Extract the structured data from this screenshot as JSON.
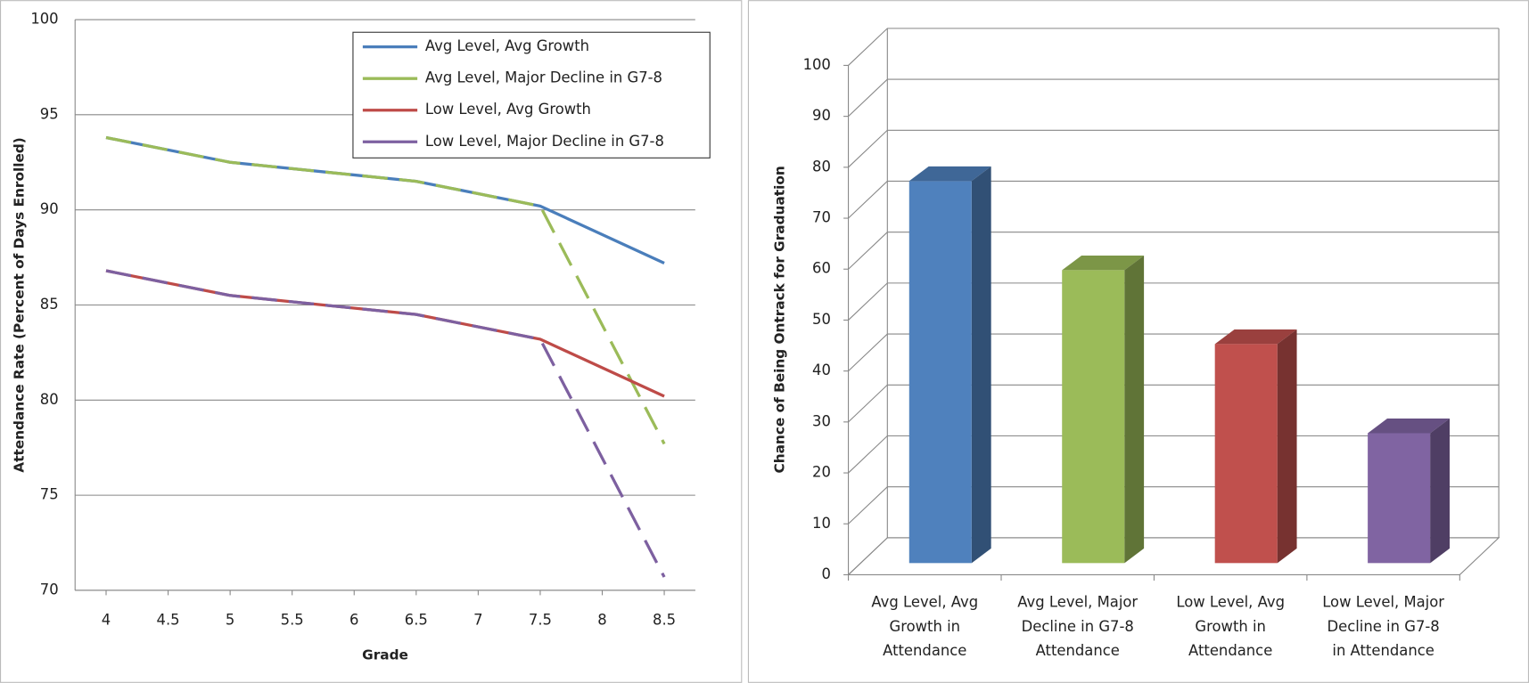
{
  "chart_data": [
    {
      "type": "line",
      "x_label": "Grade",
      "y_label": "Attendance Rate (Percent of Days Enrolled)",
      "x": [
        4,
        5,
        6.5,
        7.5,
        8.5
      ],
      "series": [
        {
          "name": "Avg Level, Avg Growth",
          "color": "#4a7ebb",
          "dashed": false,
          "values": [
            93.8,
            92.5,
            91.5,
            90.2,
            87.2
          ]
        },
        {
          "name": "Avg Level, Major Decline in G7-8",
          "color": "#9bbb59",
          "dashed": true,
          "values": [
            93.8,
            92.5,
            91.5,
            90.2,
            77.7
          ]
        },
        {
          "name": "Low Level, Avg Growth",
          "color": "#be4b48",
          "dashed": false,
          "values": [
            86.8,
            85.5,
            84.5,
            83.2,
            80.2
          ]
        },
        {
          "name": "Low Level, Major Decline in G7-8",
          "color": "#7d60a0",
          "dashed": true,
          "values": [
            86.8,
            85.5,
            84.5,
            83.2,
            70.7
          ]
        }
      ],
      "xlim": [
        3.75,
        8.75
      ],
      "xticks": [
        4,
        4.5,
        5,
        5.5,
        6,
        6.5,
        7,
        7.5,
        8,
        8.5
      ],
      "ylim": [
        70,
        100
      ],
      "yticks": [
        70,
        75,
        80,
        85,
        90,
        95,
        100
      ],
      "grid": true,
      "legend": "upper right"
    },
    {
      "type": "bar",
      "y_label": "Chance of Being Ontrack for Graduation",
      "categories": [
        "Avg Level, Avg Growth in Attendance",
        "Avg Level, Major Decline in G7-8 Attendance",
        "Low Level, Avg Growth in Attendance",
        "Low Level, Major Decline in G7-8 in Attendance"
      ],
      "values": [
        75,
        57.5,
        43,
        25.5
      ],
      "colors": [
        "#4f81bd",
        "#9bbb59",
        "#c0504d",
        "#8064a2"
      ],
      "ylim": [
        0,
        100
      ],
      "yticks": [
        0,
        10,
        20,
        30,
        40,
        50,
        60,
        70,
        80,
        90,
        100
      ],
      "grid": true
    }
  ]
}
